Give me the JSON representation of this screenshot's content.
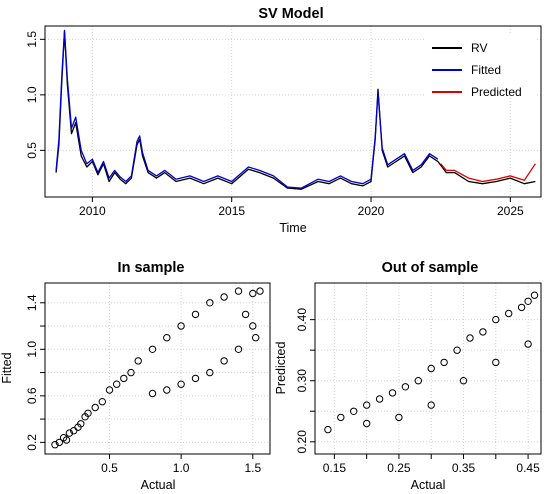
{
  "chart_data": [
    {
      "type": "line",
      "title": "SV Model",
      "xlabel": "Time",
      "ylabel": "",
      "xlim": [
        2008.3,
        2026.1
      ],
      "ylim": [
        0.08,
        1.62
      ],
      "xticks": [
        "2010",
        "2015",
        "2020",
        "2025"
      ],
      "xtick_values": [
        2010,
        2015,
        2020,
        2025
      ],
      "yticks": [
        "0.5",
        "1.0",
        "1.5"
      ],
      "ytick_values": [
        0.5,
        1.0,
        1.5
      ],
      "grid": true,
      "legend": "top-right",
      "series": [
        {
          "name": "RV",
          "color": "#000000",
          "points": [
            [
              2008.7,
              0.3
            ],
            [
              2008.8,
              0.55
            ],
            [
              2008.9,
              1.1
            ],
            [
              2009.0,
              1.57
            ],
            [
              2009.1,
              1.1
            ],
            [
              2009.25,
              0.65
            ],
            [
              2009.4,
              0.75
            ],
            [
              2009.6,
              0.45
            ],
            [
              2009.8,
              0.35
            ],
            [
              2010.0,
              0.4
            ],
            [
              2010.2,
              0.28
            ],
            [
              2010.4,
              0.38
            ],
            [
              2010.6,
              0.22
            ],
            [
              2010.8,
              0.3
            ],
            [
              2011.0,
              0.24
            ],
            [
              2011.2,
              0.2
            ],
            [
              2011.4,
              0.25
            ],
            [
              2011.6,
              0.55
            ],
            [
              2011.7,
              0.6
            ],
            [
              2011.8,
              0.45
            ],
            [
              2012.0,
              0.3
            ],
            [
              2012.3,
              0.25
            ],
            [
              2012.6,
              0.3
            ],
            [
              2013.0,
              0.22
            ],
            [
              2013.5,
              0.25
            ],
            [
              2014.0,
              0.2
            ],
            [
              2014.5,
              0.25
            ],
            [
              2015.0,
              0.2
            ],
            [
              2015.6,
              0.33
            ],
            [
              2016.0,
              0.3
            ],
            [
              2016.5,
              0.25
            ],
            [
              2017.0,
              0.16
            ],
            [
              2017.5,
              0.15
            ],
            [
              2018.1,
              0.22
            ],
            [
              2018.5,
              0.2
            ],
            [
              2018.9,
              0.25
            ],
            [
              2019.3,
              0.2
            ],
            [
              2019.7,
              0.18
            ],
            [
              2020.0,
              0.22
            ],
            [
              2020.15,
              0.6
            ],
            [
              2020.25,
              1.05
            ],
            [
              2020.4,
              0.5
            ],
            [
              2020.6,
              0.35
            ],
            [
              2020.9,
              0.4
            ],
            [
              2021.2,
              0.45
            ],
            [
              2021.5,
              0.3
            ],
            [
              2021.8,
              0.35
            ],
            [
              2022.1,
              0.45
            ],
            [
              2022.4,
              0.4
            ],
            [
              2022.7,
              0.3
            ],
            [
              2023.0,
              0.3
            ],
            [
              2023.5,
              0.22
            ],
            [
              2024.0,
              0.2
            ],
            [
              2024.5,
              0.22
            ],
            [
              2025.0,
              0.25
            ],
            [
              2025.5,
              0.2
            ],
            [
              2025.9,
              0.22
            ]
          ]
        },
        {
          "name": "Fitted",
          "color": "#0000cc",
          "points": [
            [
              2008.7,
              0.32
            ],
            [
              2008.8,
              0.6
            ],
            [
              2008.9,
              1.15
            ],
            [
              2009.0,
              1.58
            ],
            [
              2009.1,
              1.15
            ],
            [
              2009.25,
              0.7
            ],
            [
              2009.4,
              0.8
            ],
            [
              2009.6,
              0.5
            ],
            [
              2009.8,
              0.38
            ],
            [
              2010.0,
              0.42
            ],
            [
              2010.2,
              0.3
            ],
            [
              2010.4,
              0.4
            ],
            [
              2010.6,
              0.25
            ],
            [
              2010.8,
              0.32
            ],
            [
              2011.0,
              0.26
            ],
            [
              2011.2,
              0.22
            ],
            [
              2011.4,
              0.27
            ],
            [
              2011.6,
              0.58
            ],
            [
              2011.7,
              0.63
            ],
            [
              2011.8,
              0.48
            ],
            [
              2012.0,
              0.32
            ],
            [
              2012.3,
              0.27
            ],
            [
              2012.6,
              0.32
            ],
            [
              2013.0,
              0.24
            ],
            [
              2013.5,
              0.27
            ],
            [
              2014.0,
              0.22
            ],
            [
              2014.5,
              0.27
            ],
            [
              2015.0,
              0.22
            ],
            [
              2015.6,
              0.35
            ],
            [
              2016.0,
              0.32
            ],
            [
              2016.5,
              0.27
            ],
            [
              2017.0,
              0.17
            ],
            [
              2017.5,
              0.16
            ],
            [
              2018.1,
              0.24
            ],
            [
              2018.5,
              0.22
            ],
            [
              2018.9,
              0.27
            ],
            [
              2019.3,
              0.22
            ],
            [
              2019.7,
              0.2
            ],
            [
              2020.0,
              0.24
            ],
            [
              2020.15,
              0.62
            ],
            [
              2020.25,
              1.02
            ],
            [
              2020.4,
              0.52
            ],
            [
              2020.6,
              0.37
            ],
            [
              2020.9,
              0.42
            ],
            [
              2021.2,
              0.47
            ],
            [
              2021.5,
              0.32
            ],
            [
              2021.8,
              0.37
            ],
            [
              2022.1,
              0.47
            ],
            [
              2022.4,
              0.42
            ]
          ]
        },
        {
          "name": "Predicted",
          "color": "#dd0000",
          "points": [
            [
              2022.5,
              0.38
            ],
            [
              2022.7,
              0.32
            ],
            [
              2023.0,
              0.32
            ],
            [
              2023.5,
              0.25
            ],
            [
              2024.0,
              0.22
            ],
            [
              2024.5,
              0.24
            ],
            [
              2025.0,
              0.27
            ],
            [
              2025.5,
              0.23
            ],
            [
              2025.9,
              0.38
            ]
          ]
        }
      ]
    },
    {
      "type": "scatter",
      "title": "In sample",
      "xlabel": "Actual",
      "ylabel": "Fitted",
      "xlim": [
        0.05,
        1.62
      ],
      "ylim": [
        0.1,
        1.57
      ],
      "xticks": [
        "0.5",
        "1.0",
        "1.5"
      ],
      "xtick_values": [
        0.5,
        1.0,
        1.5
      ],
      "yticks": [
        "0.2",
        "0.6",
        "1.0",
        "1.4"
      ],
      "ytick_values": [
        0.2,
        0.6,
        1.0,
        1.4
      ],
      "ytick_minor_values": [
        0.4,
        0.8,
        1.2
      ],
      "grid": true,
      "points": [
        [
          0.12,
          0.18
        ],
        [
          0.15,
          0.2
        ],
        [
          0.18,
          0.24
        ],
        [
          0.2,
          0.22
        ],
        [
          0.22,
          0.28
        ],
        [
          0.25,
          0.3
        ],
        [
          0.28,
          0.33
        ],
        [
          0.3,
          0.36
        ],
        [
          0.33,
          0.42
        ],
        [
          0.35,
          0.45
        ],
        [
          0.4,
          0.5
        ],
        [
          0.45,
          0.55
        ],
        [
          0.5,
          0.65
        ],
        [
          0.55,
          0.7
        ],
        [
          0.6,
          0.75
        ],
        [
          0.65,
          0.8
        ],
        [
          0.7,
          0.9
        ],
        [
          0.8,
          1.0
        ],
        [
          0.9,
          1.1
        ],
        [
          1.0,
          1.2
        ],
        [
          1.1,
          1.3
        ],
        [
          1.2,
          1.4
        ],
        [
          1.3,
          1.45
        ],
        [
          1.4,
          1.5
        ],
        [
          1.5,
          1.48
        ],
        [
          1.55,
          1.5
        ],
        [
          1.45,
          1.3
        ],
        [
          1.5,
          1.2
        ],
        [
          1.52,
          1.1
        ],
        [
          1.4,
          1.0
        ],
        [
          1.3,
          0.9
        ],
        [
          1.2,
          0.8
        ],
        [
          1.1,
          0.75
        ],
        [
          1.0,
          0.7
        ],
        [
          0.9,
          0.65
        ],
        [
          0.8,
          0.62
        ]
      ]
    },
    {
      "type": "scatter",
      "title": "Out of sample",
      "xlabel": "Actual",
      "ylabel": "Predicted",
      "xlim": [
        0.12,
        0.47
      ],
      "ylim": [
        0.18,
        0.46
      ],
      "xticks": [
        "0.15",
        "0.25",
        "0.35",
        "0.45"
      ],
      "xtick_values": [
        0.15,
        0.25,
        0.35,
        0.45
      ],
      "xtick_minor_values": [
        0.2,
        0.3,
        0.4
      ],
      "yticks": [
        "0.20",
        "0.30",
        "0.40"
      ],
      "ytick_values": [
        0.2,
        0.3,
        0.4
      ],
      "ytick_minor_values": [
        0.25,
        0.35
      ],
      "grid": true,
      "points": [
        [
          0.14,
          0.22
        ],
        [
          0.16,
          0.24
        ],
        [
          0.18,
          0.25
        ],
        [
          0.2,
          0.26
        ],
        [
          0.22,
          0.27
        ],
        [
          0.24,
          0.28
        ],
        [
          0.26,
          0.29
        ],
        [
          0.28,
          0.3
        ],
        [
          0.3,
          0.32
        ],
        [
          0.32,
          0.33
        ],
        [
          0.34,
          0.35
        ],
        [
          0.36,
          0.37
        ],
        [
          0.38,
          0.38
        ],
        [
          0.4,
          0.4
        ],
        [
          0.42,
          0.41
        ],
        [
          0.44,
          0.42
        ],
        [
          0.45,
          0.43
        ],
        [
          0.46,
          0.44
        ],
        [
          0.2,
          0.23
        ],
        [
          0.25,
          0.24
        ],
        [
          0.3,
          0.26
        ],
        [
          0.35,
          0.3
        ],
        [
          0.4,
          0.33
        ],
        [
          0.45,
          0.36
        ]
      ]
    }
  ]
}
